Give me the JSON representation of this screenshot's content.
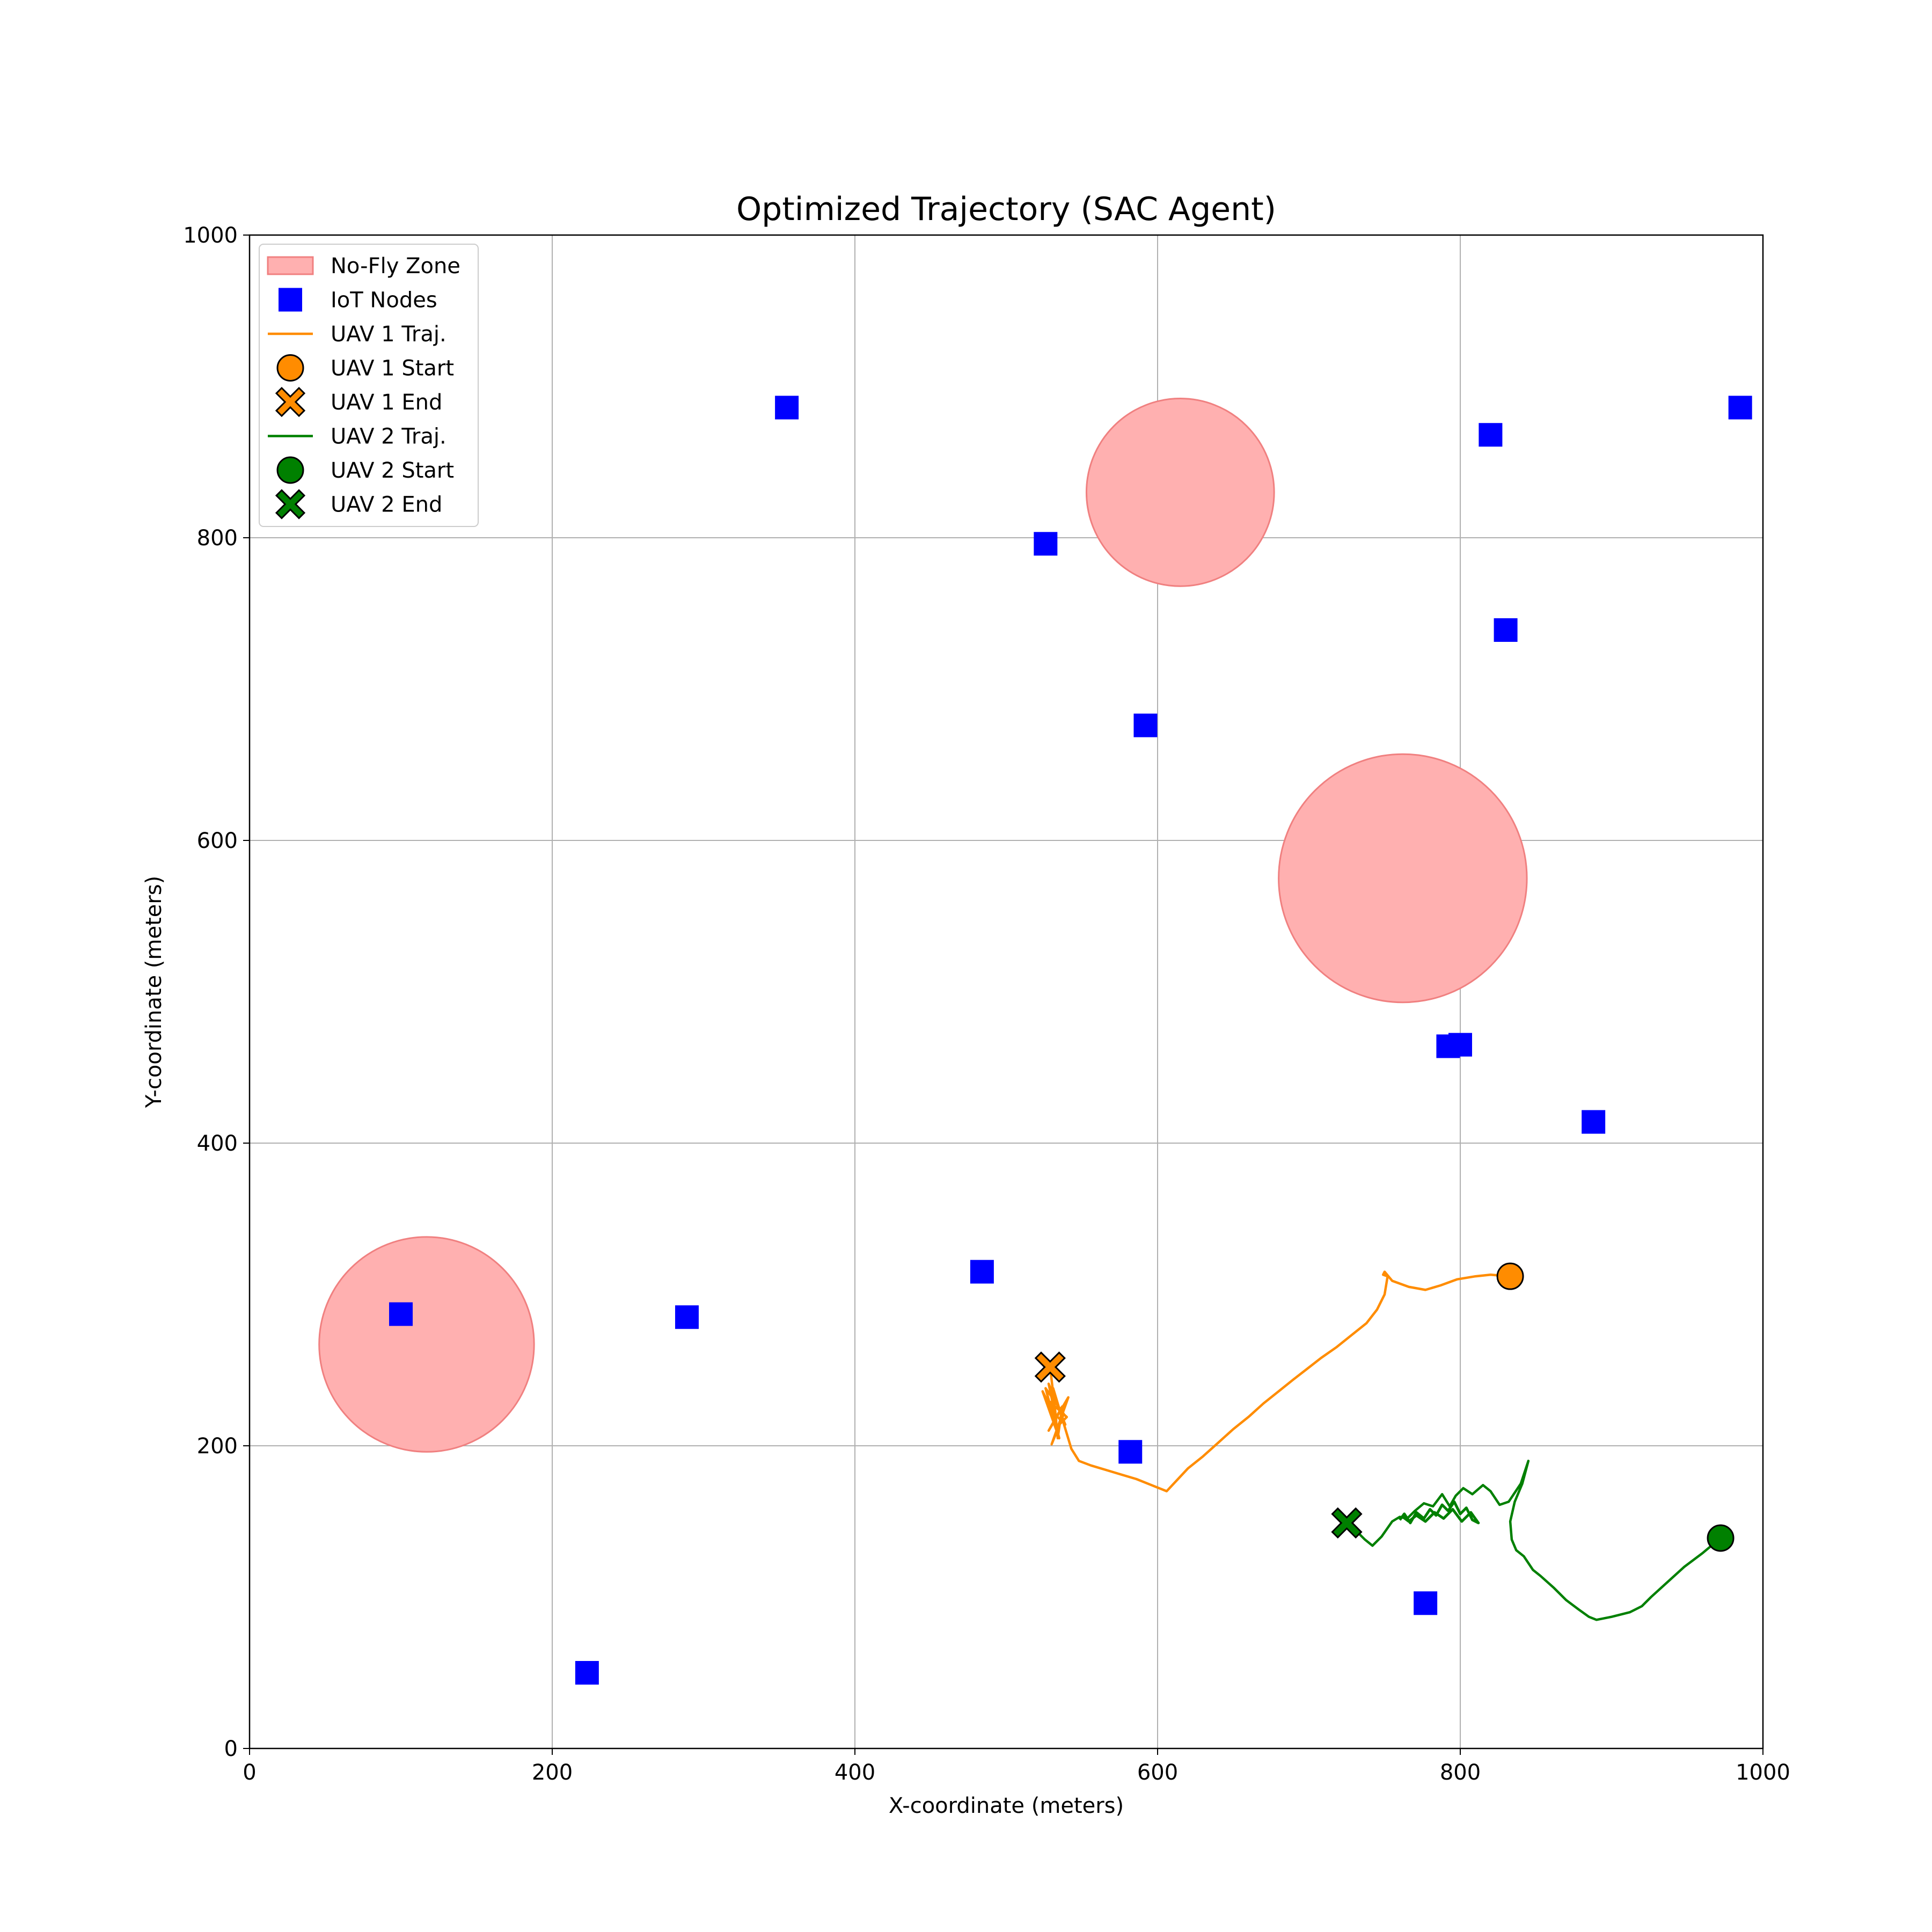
{
  "chart_data": {
    "type": "scatter",
    "title": "Optimized Trajectory (SAC Agent)",
    "xlabel": "X-coordinate (meters)",
    "ylabel": "Y-coordinate (meters)",
    "xlim": [
      0,
      1000
    ],
    "ylim": [
      0,
      1000
    ],
    "xticks": [
      0,
      200,
      400,
      600,
      800,
      1000
    ],
    "yticks": [
      0,
      200,
      400,
      600,
      800,
      1000
    ],
    "grid": true,
    "legend_position": "top-left",
    "legend": [
      {
        "label": "No-Fly Zone",
        "kind": "patch",
        "color": "#ffb0b0",
        "edge": "#f08080"
      },
      {
        "label": "IoT Nodes",
        "kind": "square",
        "color": "#0000ff"
      },
      {
        "label": "UAV 1 Traj.",
        "kind": "line",
        "color": "#ff8c00"
      },
      {
        "label": "UAV 1 Start",
        "kind": "circle",
        "color": "#ff8c00"
      },
      {
        "label": "UAV 1 End",
        "kind": "cross",
        "color": "#ff8c00"
      },
      {
        "label": "UAV 2 Traj.",
        "kind": "line",
        "color": "#008000"
      },
      {
        "label": "UAV 2 Start",
        "kind": "circle",
        "color": "#008000"
      },
      {
        "label": "UAV 2 End",
        "kind": "cross",
        "color": "#008000"
      }
    ],
    "no_fly_zones": [
      {
        "center": [
          615,
          830
        ],
        "radius": 62
      },
      {
        "center": [
          762,
          575
        ],
        "radius": 82
      },
      {
        "center": [
          117,
          267
        ],
        "radius": 71
      }
    ],
    "iot_nodes": [
      [
        355,
        886
      ],
      [
        526,
        796
      ],
      [
        820,
        868
      ],
      [
        985,
        886
      ],
      [
        830,
        739
      ],
      [
        592,
        676
      ],
      [
        792,
        464
      ],
      [
        800,
        465
      ],
      [
        888,
        414
      ],
      [
        100,
        287
      ],
      [
        289,
        285
      ],
      [
        484,
        315
      ],
      [
        582,
        196
      ],
      [
        777,
        96
      ],
      [
        223,
        50
      ]
    ],
    "uav1": {
      "color": "#ff8c00",
      "start": [
        833,
        312
      ],
      "end": [
        529,
        252
      ],
      "trajectory": [
        [
          833,
          312
        ],
        [
          820,
          313
        ],
        [
          810,
          312
        ],
        [
          798,
          310
        ],
        [
          787,
          306
        ],
        [
          777,
          303
        ],
        [
          766,
          305
        ],
        [
          755,
          309
        ],
        [
          750,
          315
        ],
        [
          749,
          313
        ],
        [
          752,
          312
        ],
        [
          750,
          300
        ],
        [
          745,
          290
        ],
        [
          738,
          281
        ],
        [
          728,
          273
        ],
        [
          718,
          265
        ],
        [
          708,
          258
        ],
        [
          699,
          251
        ],
        [
          690,
          244
        ],
        [
          680,
          236
        ],
        [
          670,
          228
        ],
        [
          660,
          219
        ],
        [
          650,
          211
        ],
        [
          640,
          202
        ],
        [
          630,
          193
        ],
        [
          620,
          185
        ],
        [
          606,
          170
        ],
        [
          596,
          174
        ],
        [
          586,
          178
        ],
        [
          576,
          181
        ],
        [
          566,
          184
        ],
        [
          556,
          187
        ],
        [
          548,
          190
        ],
        [
          543,
          198
        ],
        [
          540,
          208
        ],
        [
          537,
          218
        ],
        [
          534,
          228
        ],
        [
          531,
          238
        ],
        [
          534,
          205
        ],
        [
          537,
          226
        ],
        [
          528,
          210
        ],
        [
          541,
          232
        ],
        [
          530,
          201
        ],
        [
          538,
          221
        ],
        [
          526,
          238
        ],
        [
          533,
          212
        ],
        [
          540,
          219
        ],
        [
          529,
          229
        ],
        [
          535,
          205
        ],
        [
          524,
          236
        ],
        [
          531,
          222
        ],
        [
          539,
          214
        ],
        [
          528,
          241
        ],
        [
          533,
          217
        ],
        [
          529,
          252
        ]
      ]
    },
    "uav2": {
      "color": "#008000",
      "start": [
        972,
        139
      ],
      "end": [
        725,
        149
      ],
      "trajectory": [
        [
          972,
          139
        ],
        [
          960,
          129
        ],
        [
          948,
          120
        ],
        [
          937,
          110
        ],
        [
          926,
          100
        ],
        [
          920,
          94
        ],
        [
          912,
          90
        ],
        [
          900,
          87
        ],
        [
          890,
          85
        ],
        [
          885,
          87
        ],
        [
          878,
          92
        ],
        [
          870,
          98
        ],
        [
          862,
          106
        ],
        [
          853,
          114
        ],
        [
          848,
          118
        ],
        [
          842,
          127
        ],
        [
          837,
          131
        ],
        [
          834,
          138
        ],
        [
          833,
          150
        ],
        [
          836,
          163
        ],
        [
          841,
          175
        ],
        [
          845,
          190
        ],
        [
          840,
          175
        ],
        [
          832,
          163
        ],
        [
          826,
          161
        ],
        [
          820,
          170
        ],
        [
          815,
          174
        ],
        [
          808,
          168
        ],
        [
          802,
          172
        ],
        [
          797,
          167
        ],
        [
          793,
          160
        ],
        [
          788,
          168
        ],
        [
          782,
          160
        ],
        [
          776,
          162
        ],
        [
          770,
          157
        ],
        [
          765,
          152
        ],
        [
          760,
          153
        ],
        [
          755,
          150
        ],
        [
          748,
          140
        ],
        [
          742,
          134
        ],
        [
          737,
          138
        ],
        [
          730,
          145
        ],
        [
          725,
          149
        ]
      ],
      "jitter_cluster": [
        [
          760,
          151
        ],
        [
          763,
          155
        ],
        [
          767,
          149
        ],
        [
          771,
          156
        ],
        [
          776,
          152
        ],
        [
          780,
          158
        ],
        [
          784,
          154
        ],
        [
          788,
          161
        ],
        [
          792,
          157
        ],
        [
          796,
          163
        ],
        [
          800,
          155
        ],
        [
          804,
          159
        ],
        [
          808,
          151
        ],
        [
          812,
          149
        ],
        [
          807,
          156
        ],
        [
          801,
          150
        ],
        [
          795,
          158
        ],
        [
          789,
          152
        ],
        [
          783,
          156
        ],
        [
          777,
          150
        ],
        [
          771,
          154
        ],
        [
          766,
          150
        ],
        [
          762,
          153
        ]
      ]
    }
  }
}
